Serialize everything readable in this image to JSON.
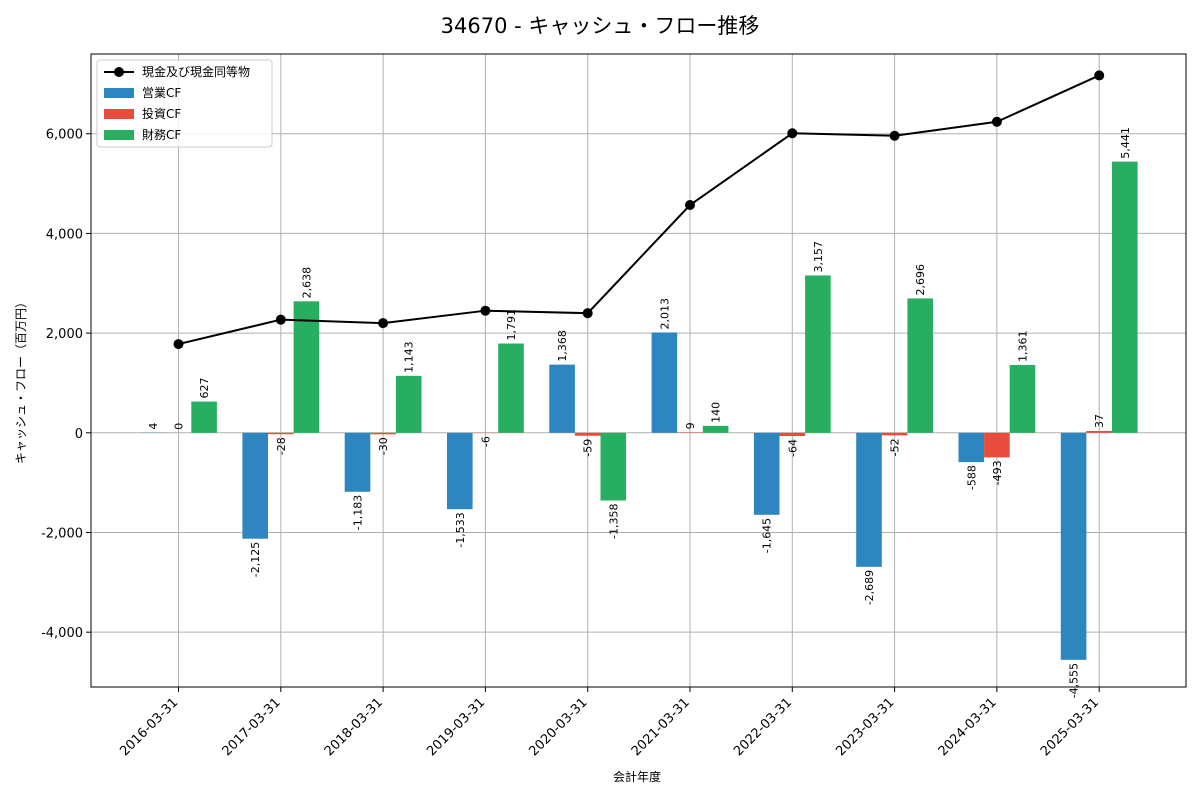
{
  "chart_data": {
    "type": "bar",
    "title": "34670 - キャッシュ・フロー推移",
    "xlabel": "会計年度",
    "ylabel": "キャッシュ・フロー（百万円）",
    "categories": [
      "2016-03-31",
      "2017-03-31",
      "2018-03-31",
      "2019-03-31",
      "2020-03-31",
      "2021-03-31",
      "2022-03-31",
      "2023-03-31",
      "2024-03-31",
      "2025-03-31"
    ],
    "ylim": [
      -5100,
      7600
    ],
    "yticks": [
      -4000,
      -2000,
      0,
      2000,
      4000,
      6000
    ],
    "ytick_labels": [
      "-4,000",
      "-2,000",
      "0",
      "2,000",
      "4,000",
      "6,000"
    ],
    "grid": true,
    "legend_position": "top-left",
    "series": [
      {
        "name": "営業CF",
        "kind": "bar",
        "color": "#2e86c1",
        "values": [
          4,
          -2125,
          -1183,
          -1533,
          1368,
          2013,
          -1645,
          -2689,
          -588,
          -4555
        ],
        "labels": [
          "4",
          "-2,125",
          "-1,183",
          "-1,533",
          "1,368",
          "2,013",
          "-1,645",
          "-2,689",
          "-588",
          "-4,555"
        ]
      },
      {
        "name": "投資CF",
        "kind": "bar",
        "color": "#e74c3c",
        "values": [
          0,
          -28,
          -30,
          -6,
          -59,
          9,
          -64,
          -52,
          -493,
          37
        ],
        "labels": [
          "0",
          "-28",
          "-30",
          "-6",
          "-59",
          "9",
          "-64",
          "-52",
          "-493",
          "37"
        ]
      },
      {
        "name": "財務CF",
        "kind": "bar",
        "color": "#27ae60",
        "values": [
          627,
          2638,
          1143,
          1791,
          -1358,
          140,
          3157,
          2696,
          1361,
          5441
        ],
        "labels": [
          "627",
          "2,638",
          "1,143",
          "1,791",
          "-1,358",
          "140",
          "3,157",
          "2,696",
          "1,361",
          "5,441"
        ]
      },
      {
        "name": "現金及び現金同等物",
        "kind": "line",
        "color": "#000000",
        "values": [
          1780,
          2270,
          2200,
          2450,
          2400,
          4570,
          6010,
          5960,
          6240,
          7170
        ]
      }
    ]
  }
}
